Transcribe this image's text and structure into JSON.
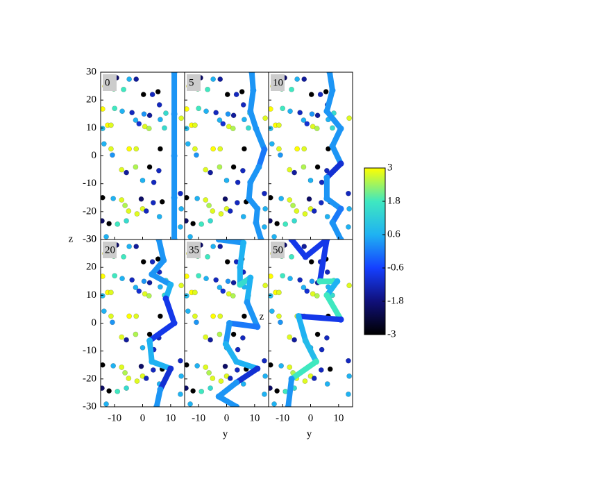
{
  "chart_data": {
    "type": "scatter",
    "xlabel": "y",
    "ylabel": "z",
    "xlim": [
      -15,
      15
    ],
    "ylim": [
      -30,
      30
    ],
    "xticks": [
      -10,
      0,
      10
    ],
    "yticks": [
      -30,
      -20,
      -10,
      0,
      10,
      20,
      30
    ],
    "clim": [
      -3,
      3
    ],
    "cticks": [
      -3,
      -1.8,
      -0.6,
      0.6,
      1.8,
      3
    ],
    "colormap": [
      "#000000",
      "#10107a",
      "#1540ff",
      "#1fb2f2",
      "#3fe8c0",
      "#ffff00"
    ],
    "particles": {
      "x": [
        -13.5,
        -9.3,
        -4.8,
        -2.3,
        -10.3,
        -6.8,
        0.3,
        3.5,
        -14.3,
        -10,
        -7.3,
        -3.8,
        0.5,
        2.5,
        5.5,
        6,
        8.3,
        -14.3,
        -12.5,
        -11.3,
        -2.5,
        -1.3,
        0.8,
        2.3,
        6.3,
        7.8,
        -4.8,
        -11.3,
        -2.3,
        6.3,
        -13.8,
        -10.8,
        -7.5,
        -5.8,
        -2.5,
        2.5,
        5.8,
        0,
        4,
        -14.3,
        -10.5,
        -7.5,
        -6.3,
        -5,
        0,
        -0.5,
        3.8,
        -14.5,
        -12,
        -9,
        -5.8,
        -2,
        1.3,
        6,
        7,
        13.5,
        13.8,
        13.5,
        13.8,
        -13
      ],
      "y": [
        25,
        28,
        27.5,
        27.5,
        24,
        23.8,
        22,
        22,
        16.8,
        17,
        16,
        15.5,
        15,
        14.5,
        23,
        18.3,
        15.3,
        9.8,
        11,
        11,
        12.8,
        11.5,
        10.5,
        9.8,
        13,
        10,
        2.5,
        2.5,
        2.5,
        2.5,
        4.3,
        0.3,
        -5,
        -6,
        -4,
        -4,
        -5.3,
        -8.8,
        -9.5,
        -15,
        -15.3,
        -15.8,
        -17.8,
        -19.8,
        -19,
        -15.5,
        -16.8,
        -23.3,
        -24.3,
        -24.5,
        -23.3,
        -20.8,
        -19.8,
        -21.8,
        -16.5,
        -13.5,
        -19,
        -25.5,
        13.5,
        -29
      ],
      "c": [
        3,
        -2,
        0.6,
        -1.5,
        2,
        1.8,
        -3,
        -1.2,
        3,
        1.8,
        0.6,
        -1.2,
        0.3,
        -1.5,
        -3,
        -1.2,
        1.5,
        0.8,
        3,
        2.8,
        0.6,
        -1,
        2.8,
        2.5,
        0.6,
        1.5,
        3,
        2.8,
        2.8,
        -3,
        0.6,
        0.3,
        2.8,
        -1.5,
        2.5,
        -3,
        -1.2,
        0.6,
        -1.2,
        -3,
        0.6,
        2.8,
        2.5,
        2.8,
        2.8,
        -2,
        -1.2,
        -2,
        -3,
        1.8,
        1.5,
        2.8,
        -1.2,
        0.6,
        -3,
        -1.2,
        0.6,
        0.6,
        2.8,
        0.6
      ]
    },
    "panels": [
      {
        "label": "0",
        "line": {
          "x": [
            11.3,
            11.3,
            11.3,
            11.3,
            11.3
          ],
          "y": [
            30,
            15,
            0,
            -15,
            -30
          ],
          "c": [
            0.3,
            0.3,
            0.3,
            0.3,
            0.3
          ]
        }
      },
      {
        "label": "5",
        "line": {
          "x": [
            9,
            9.5,
            8.5,
            10.5,
            13.5,
            11.5,
            8.5,
            8,
            11,
            10.5,
            12.3
          ],
          "y": [
            30,
            23.5,
            16,
            9.8,
            2.3,
            -4,
            -9.5,
            -15.3,
            -19,
            -24,
            -30
          ],
          "c": [
            0.3,
            0.3,
            0.3,
            0.3,
            0,
            0.3,
            0.3,
            0.3,
            0.3,
            0.3,
            0.3
          ]
        }
      },
      {
        "label": "10",
        "line": {
          "x": [
            6.8,
            7.8,
            5.8,
            10.8,
            7.8,
            10.8,
            5.8,
            5.8,
            10.8,
            7.8,
            10.8
          ],
          "y": [
            30,
            23.5,
            16,
            9.8,
            3.5,
            -2.8,
            -7.8,
            -15.3,
            -19,
            -24,
            -30
          ],
          "c": [
            0.3,
            0.3,
            0.3,
            0.3,
            0.3,
            -1,
            0.3,
            0.3,
            0,
            0.3,
            0.3
          ]
        }
      },
      {
        "label": "20",
        "line": {
          "x": [
            5.8,
            7.5,
            3.3,
            10,
            8.3,
            11.3,
            2.5,
            3.3,
            10,
            6.3,
            5
          ],
          "y": [
            30,
            22.5,
            17.5,
            13.8,
            8.8,
            0,
            -6.3,
            -13.8,
            -16.3,
            -23.8,
            -30
          ],
          "c": [
            0.3,
            0.3,
            0.3,
            0.6,
            -0.8,
            -0.8,
            0.6,
            0.6,
            -1,
            0.3,
            0.3
          ]
        }
      },
      {
        "label": "35",
        "line": {
          "x": [
            -2.8,
            6,
            4.8,
            4.8,
            8.5,
            7.3,
            11,
            1,
            -0.3,
            3.5,
            11,
            3.5,
            -2.8,
            3.5
          ],
          "y": [
            30,
            28.8,
            20,
            13.8,
            16.3,
            7.5,
            -1.3,
            0,
            -7.5,
            -13.8,
            -16.3,
            -21.3,
            -26.3,
            -30
          ],
          "c": [
            0.3,
            0.6,
            0.6,
            1.5,
            0.6,
            0.3,
            0,
            0.3,
            0.6,
            0.6,
            -1,
            0.3,
            0.3,
            0.3
          ]
        }
      },
      {
        "label": "50",
        "line": {
          "x": [
            -6.8,
            -1.8,
            5.8,
            3.3,
            9.5,
            5.8,
            10.8,
            -4.3,
            -1.8,
            2,
            -6.8,
            -8
          ],
          "y": [
            30,
            23.8,
            30,
            15,
            15,
            10,
            1.3,
            2.5,
            -6.3,
            -13.8,
            -20,
            -30
          ],
          "c": [
            -0.8,
            -0.8,
            -0.8,
            1.8,
            0.6,
            1.8,
            -0.8,
            0.6,
            0.8,
            1.8,
            0.3,
            0.3
          ]
        }
      }
    ]
  }
}
